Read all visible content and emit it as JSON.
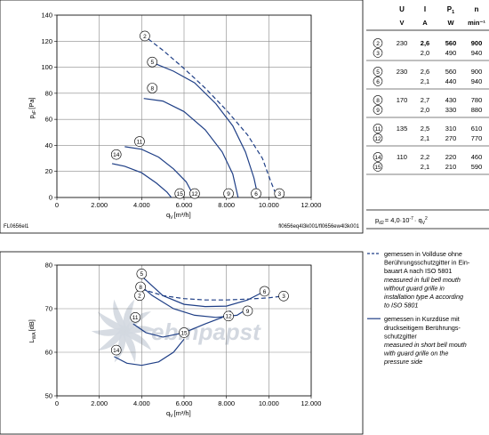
{
  "colors": {
    "curve": "#1f3f86",
    "grid": "#8a8a8a",
    "axis": "#000000",
    "watermark": "#d3d8e0"
  },
  "top_chart_label_left": "FL0656el1",
  "top_chart_label_right": "fl0656eq4l3k001/fl0656ew4l3k001",
  "bottom_watermark": "ebmpapst",
  "chart_data": [
    {
      "type": "line",
      "ylabel_main": "p",
      "ylabel_sub": "sF",
      "ylabel_unit": "[Pa]",
      "xlabel_main": "q",
      "xlabel_sub": "V",
      "xlabel_unit": "[m³/h]",
      "xlim": [
        0,
        12000
      ],
      "ylim": [
        0,
        140
      ],
      "x_ticks": [
        0,
        2000,
        4000,
        6000,
        8000,
        10000,
        12000
      ],
      "x_tick_labels": [
        "0",
        "2.000",
        "4.000",
        "6.000",
        "8.000",
        "10.000",
        "12.000"
      ],
      "y_ticks": [
        0,
        20,
        40,
        60,
        80,
        100,
        120,
        140
      ],
      "y_tick_labels": [
        "0",
        "20",
        "40",
        "60",
        "80",
        "100",
        "120",
        "140"
      ],
      "grid": true,
      "series": [
        {
          "name": "2",
          "style": "dashed",
          "label_at": [
            4150,
            124
          ],
          "points": [
            [
              4050,
              125
            ],
            [
              5000,
              113
            ],
            [
              6000,
              99
            ],
            [
              7000,
              84
            ],
            [
              8000,
              67
            ],
            [
              9000,
              48
            ],
            [
              9700,
              30
            ],
            [
              10100,
              12
            ],
            [
              10400,
              0
            ]
          ],
          "end_label_at": [
            10500,
            3
          ],
          "end_label": "3"
        },
        {
          "name": "5",
          "style": "solid",
          "label_at": [
            4500,
            104
          ],
          "points": [
            [
              4600,
              103
            ],
            [
              5500,
              97
            ],
            [
              6500,
              88
            ],
            [
              7500,
              72
            ],
            [
              8300,
              55
            ],
            [
              8900,
              35
            ],
            [
              9300,
              15
            ],
            [
              9500,
              0
            ]
          ],
          "end_label_at": [
            9400,
            3
          ],
          "end_label": "6"
        },
        {
          "name": "8",
          "style": "solid",
          "label_at": [
            4500,
            84
          ],
          "points": [
            [
              4100,
              76
            ],
            [
              5000,
              74
            ],
            [
              6000,
              66
            ],
            [
              7000,
              52
            ],
            [
              7800,
              35
            ],
            [
              8300,
              18
            ],
            [
              8550,
              0
            ]
          ],
          "end_label_at": [
            8100,
            3
          ],
          "end_label": "9"
        },
        {
          "name": "11",
          "style": "solid",
          "label_at": [
            3900,
            43
          ],
          "points": [
            [
              3200,
              39
            ],
            [
              4000,
              37
            ],
            [
              4800,
              31
            ],
            [
              5500,
              22
            ],
            [
              6100,
              12
            ],
            [
              6500,
              0
            ]
          ],
          "end_label_at": [
            6500,
            3
          ],
          "end_label": "12"
        },
        {
          "name": "14",
          "style": "solid",
          "label_at": [
            2800,
            33
          ],
          "points": [
            [
              2600,
              26
            ],
            [
              3200,
              24
            ],
            [
              4000,
              19
            ],
            [
              4700,
              11
            ],
            [
              5200,
              4
            ],
            [
              5400,
              0
            ]
          ],
          "end_label_at": [
            5800,
            3
          ],
          "end_label": "15"
        }
      ]
    },
    {
      "type": "line",
      "ylabel_main": "L",
      "ylabel_sub": "WA",
      "ylabel_unit": "[dB]",
      "xlabel_main": "q",
      "xlabel_sub": "V",
      "xlabel_unit": "[m³/h]",
      "xlim": [
        0,
        12000
      ],
      "ylim": [
        50,
        80
      ],
      "x_ticks": [
        0,
        2000,
        4000,
        6000,
        8000,
        10000,
        12000
      ],
      "x_tick_labels": [
        "0",
        "2.000",
        "4.000",
        "6.000",
        "8.000",
        "10.000",
        "12.000"
      ],
      "y_ticks": [
        50,
        60,
        70,
        80
      ],
      "y_tick_labels": [
        "50",
        "60",
        "70",
        "80"
      ],
      "grid": true,
      "series": [
        {
          "name": "2",
          "style": "dashed",
          "label_at": [
            3900,
            73
          ],
          "points": [
            [
              4000,
              74.5
            ],
            [
              5000,
              73
            ],
            [
              6000,
              72.3
            ],
            [
              7000,
              72
            ],
            [
              8000,
              72
            ],
            [
              9000,
              72.2
            ],
            [
              10000,
              72.5
            ],
            [
              10500,
              72.8
            ]
          ],
          "end_label_at": [
            10700,
            72.9
          ],
          "end_label": "3"
        },
        {
          "name": "5",
          "style": "solid",
          "label_at": [
            4000,
            78
          ],
          "points": [
            [
              4100,
              77
            ],
            [
              5000,
              73
            ],
            [
              6000,
              71
            ],
            [
              7000,
              70.5
            ],
            [
              8000,
              70.6
            ],
            [
              9000,
              72
            ],
            [
              9600,
              73.5
            ]
          ],
          "end_label_at": [
            9800,
            74
          ],
          "end_label": "6"
        },
        {
          "name": "8",
          "style": "solid",
          "label_at": [
            3950,
            75
          ],
          "points": [
            [
              3900,
              75.5
            ],
            [
              4500,
              73
            ],
            [
              5500,
              70
            ],
            [
              6500,
              68.5
            ],
            [
              7500,
              68
            ],
            [
              8500,
              68.5
            ],
            [
              9000,
              70
            ]
          ],
          "end_label_at": [
            9000,
            69.5
          ],
          "end_label": "9"
        },
        {
          "name": "11",
          "style": "solid",
          "label_at": [
            3700,
            68
          ],
          "points": [
            [
              3600,
              66.5
            ],
            [
              4200,
              64.5
            ],
            [
              5000,
              63.5
            ],
            [
              6000,
              64.5
            ],
            [
              7000,
              66.5
            ],
            [
              7800,
              68
            ],
            [
              8200,
              69.5
            ]
          ],
          "end_label_at": [
            8100,
            68.3
          ],
          "end_label": "12"
        },
        {
          "name": "14",
          "style": "solid",
          "label_at": [
            2800,
            60.5
          ],
          "points": [
            [
              2700,
              59
            ],
            [
              3300,
              57.5
            ],
            [
              4000,
              57
            ],
            [
              4800,
              57.8
            ],
            [
              5500,
              60
            ],
            [
              6000,
              63
            ]
          ],
          "end_label_at": [
            6000,
            64.5
          ],
          "end_label": "15"
        }
      ]
    }
  ],
  "table": {
    "header_symbols": [
      "U",
      "I",
      "P",
      "n"
    ],
    "header_symbol_subs": [
      "",
      "",
      "1",
      ""
    ],
    "header_units": [
      "V",
      "A",
      "W",
      "min⁻¹"
    ],
    "groups": [
      {
        "rows": [
          {
            "id": "2",
            "U": "230",
            "I": "2,6",
            "P": "560",
            "n": "900",
            "bold": true
          },
          {
            "id": "3",
            "U": "",
            "I": "2,0",
            "P": "490",
            "n": "940"
          }
        ]
      },
      {
        "rows": [
          {
            "id": "5",
            "U": "230",
            "I": "2,6",
            "P": "560",
            "n": "900"
          },
          {
            "id": "6",
            "U": "",
            "I": "2,1",
            "P": "440",
            "n": "940"
          }
        ]
      },
      {
        "rows": [
          {
            "id": "8",
            "U": "170",
            "I": "2,7",
            "P": "430",
            "n": "780"
          },
          {
            "id": "9",
            "U": "",
            "I": "2,0",
            "P": "330",
            "n": "880"
          }
        ]
      },
      {
        "rows": [
          {
            "id": "11",
            "U": "135",
            "I": "2,5",
            "P": "310",
            "n": "610"
          },
          {
            "id": "12",
            "U": "",
            "I": "2,1",
            "P": "270",
            "n": "770"
          }
        ]
      },
      {
        "rows": [
          {
            "id": "14",
            "U": "110",
            "I": "2,2",
            "P": "220",
            "n": "460"
          },
          {
            "id": "15",
            "U": "",
            "I": "2,1",
            "P": "210",
            "n": "590"
          }
        ]
      }
    ]
  },
  "formula": {
    "lhs": "p",
    "lhs_sub": "d2",
    "rhs": "= 4,0·10",
    "exp": "-7",
    "tail": "· q",
    "tail_sub": "V",
    "tail_exp": "2"
  },
  "legend": [
    {
      "style": "dashed",
      "lines": [
        {
          "text": "gemessen in Vollduse ohne",
          "italic": false
        },
        {
          "text": "Berührungsschutzgitter in Ein-",
          "italic": false
        },
        {
          "text": "bauart A nach ISO 5801",
          "italic": false
        },
        {
          "text": "measured in full bell mouth",
          "italic": true
        },
        {
          "text": "without guard grille in",
          "italic": true
        },
        {
          "text": "installation type A according",
          "italic": true
        },
        {
          "text": "to ISO 5801",
          "italic": true
        }
      ]
    },
    {
      "style": "solid",
      "lines": [
        {
          "text": "gemessen in Kurzdüse mit",
          "italic": false
        },
        {
          "text": "druckseitigem Berührungs-",
          "italic": false
        },
        {
          "text": "schutzgitter",
          "italic": false
        },
        {
          "text": "measured in short bell mouth",
          "italic": true
        },
        {
          "text": "with guard grille on the",
          "italic": true
        },
        {
          "text": "pressure side",
          "italic": true
        }
      ]
    }
  ]
}
